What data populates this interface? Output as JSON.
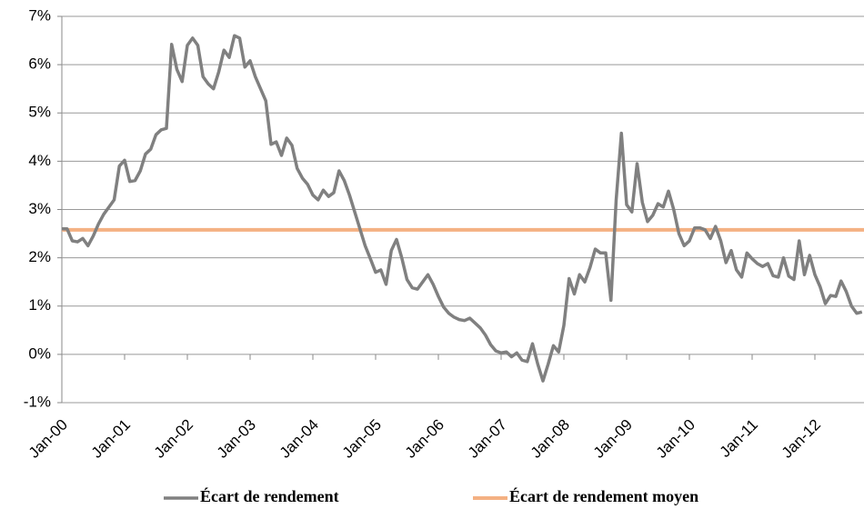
{
  "chart_data": {
    "type": "line",
    "categories": [
      "Jan-00",
      null,
      null,
      null,
      null,
      null,
      null,
      null,
      null,
      null,
      null,
      null,
      "Jan-01",
      null,
      null,
      null,
      null,
      null,
      null,
      null,
      null,
      null,
      null,
      null,
      "Jan-02",
      null,
      null,
      null,
      null,
      null,
      null,
      null,
      null,
      null,
      null,
      null,
      "Jan-03",
      null,
      null,
      null,
      null,
      null,
      null,
      null,
      null,
      null,
      null,
      null,
      "Jan-04",
      null,
      null,
      null,
      null,
      null,
      null,
      null,
      null,
      null,
      null,
      null,
      "Jan-05",
      null,
      null,
      null,
      null,
      null,
      null,
      null,
      null,
      null,
      null,
      null,
      "Jan-06",
      null,
      null,
      null,
      null,
      null,
      null,
      null,
      null,
      null,
      null,
      null,
      "Jan-07",
      null,
      null,
      null,
      null,
      null,
      null,
      null,
      null,
      null,
      null,
      null,
      "Jan-08",
      null,
      null,
      null,
      null,
      null,
      null,
      null,
      null,
      null,
      null,
      null,
      "Jan-09",
      null,
      null,
      null,
      null,
      null,
      null,
      null,
      null,
      null,
      null,
      null,
      "Jan-10",
      null,
      null,
      null,
      null,
      null,
      null,
      null,
      null,
      null,
      null,
      null,
      "Jan-11",
      null,
      null,
      null,
      null,
      null,
      null,
      null,
      null,
      null,
      null,
      null,
      "Jan-12",
      null,
      null,
      null,
      null,
      null,
      null,
      null,
      null,
      null
    ],
    "series": [
      {
        "name": "Écart de rendement",
        "color": "#808080",
        "values": [
          2.6,
          2.6,
          2.35,
          2.33,
          2.4,
          2.25,
          2.45,
          2.7,
          2.9,
          3.05,
          3.2,
          3.9,
          4.02,
          3.58,
          3.6,
          3.8,
          4.15,
          4.25,
          4.55,
          4.65,
          4.68,
          6.42,
          5.9,
          5.65,
          6.4,
          6.55,
          6.4,
          5.75,
          5.6,
          5.5,
          5.85,
          6.3,
          6.15,
          6.6,
          6.55,
          5.95,
          6.08,
          5.75,
          5.5,
          5.25,
          4.35,
          4.4,
          4.12,
          4.48,
          4.33,
          3.85,
          3.65,
          3.52,
          3.3,
          3.2,
          3.4,
          3.27,
          3.35,
          3.8,
          3.6,
          3.3,
          2.95,
          2.6,
          2.25,
          1.98,
          1.7,
          1.75,
          1.45,
          2.15,
          2.38,
          2.0,
          1.55,
          1.38,
          1.35,
          1.5,
          1.65,
          1.45,
          1.2,
          0.98,
          0.85,
          0.77,
          0.72,
          0.7,
          0.75,
          0.65,
          0.55,
          0.4,
          0.2,
          0.07,
          0.03,
          0.05,
          -0.05,
          0.03,
          -0.12,
          -0.15,
          0.22,
          -0.2,
          -0.55,
          -0.2,
          0.18,
          0.05,
          0.6,
          1.57,
          1.25,
          1.65,
          1.5,
          1.8,
          2.18,
          2.1,
          2.1,
          1.12,
          3.2,
          4.58,
          3.1,
          2.95,
          3.95,
          3.15,
          2.75,
          2.88,
          3.12,
          3.05,
          3.38,
          3.0,
          2.5,
          2.25,
          2.35,
          2.62,
          2.62,
          2.58,
          2.4,
          2.65,
          2.35,
          1.9,
          2.15,
          1.75,
          1.6,
          2.1,
          1.98,
          1.88,
          1.82,
          1.88,
          1.63,
          1.6,
          2.0,
          1.62,
          1.55,
          2.35,
          1.65,
          2.05,
          1.65,
          1.4,
          1.05,
          1.22,
          1.2,
          1.52,
          1.3,
          1.0,
          0.85,
          0.88
        ]
      }
    ],
    "hlines": [
      {
        "name": "Écart de rendement moyen",
        "color": "#f4b183",
        "value": 2.58
      }
    ],
    "ylim": [
      -1,
      7
    ],
    "yticks": [
      {
        "value": -1,
        "label": "-1%"
      },
      {
        "value": 0,
        "label": "0%"
      },
      {
        "value": 1,
        "label": "1%"
      },
      {
        "value": 2,
        "label": "2%"
      },
      {
        "value": 3,
        "label": "3%"
      },
      {
        "value": 4,
        "label": "4%"
      },
      {
        "value": 5,
        "label": "5%"
      },
      {
        "value": 6,
        "label": "6%"
      },
      {
        "value": 7,
        "label": "7%"
      }
    ],
    "grid": true,
    "legend": "bottom"
  }
}
